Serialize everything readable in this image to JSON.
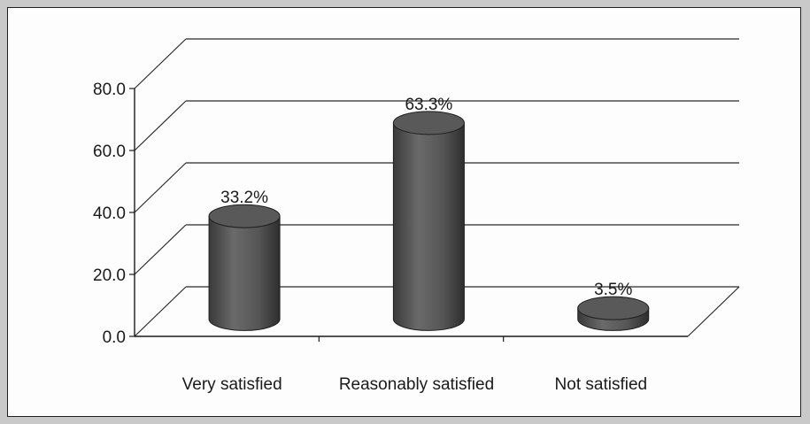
{
  "chart_data": {
    "type": "bar",
    "style": "3d-cylinder",
    "title": "",
    "xlabel": "",
    "ylabel": "",
    "categories": [
      "Very satisfied",
      "Reasonably satisfied",
      "Not satisfied"
    ],
    "values": [
      33.2,
      63.3,
      3.5
    ],
    "data_labels": [
      "33.2%",
      "63.3%",
      "3.5%"
    ],
    "ylim": [
      0,
      80
    ],
    "yticks": [
      "0.0",
      "20.0",
      "40.0",
      "60.0",
      "80.0"
    ],
    "ytick_values": [
      0,
      20,
      40,
      60,
      80
    ],
    "grid": true,
    "legend": "none",
    "bar_color": "#4a4a4a"
  }
}
